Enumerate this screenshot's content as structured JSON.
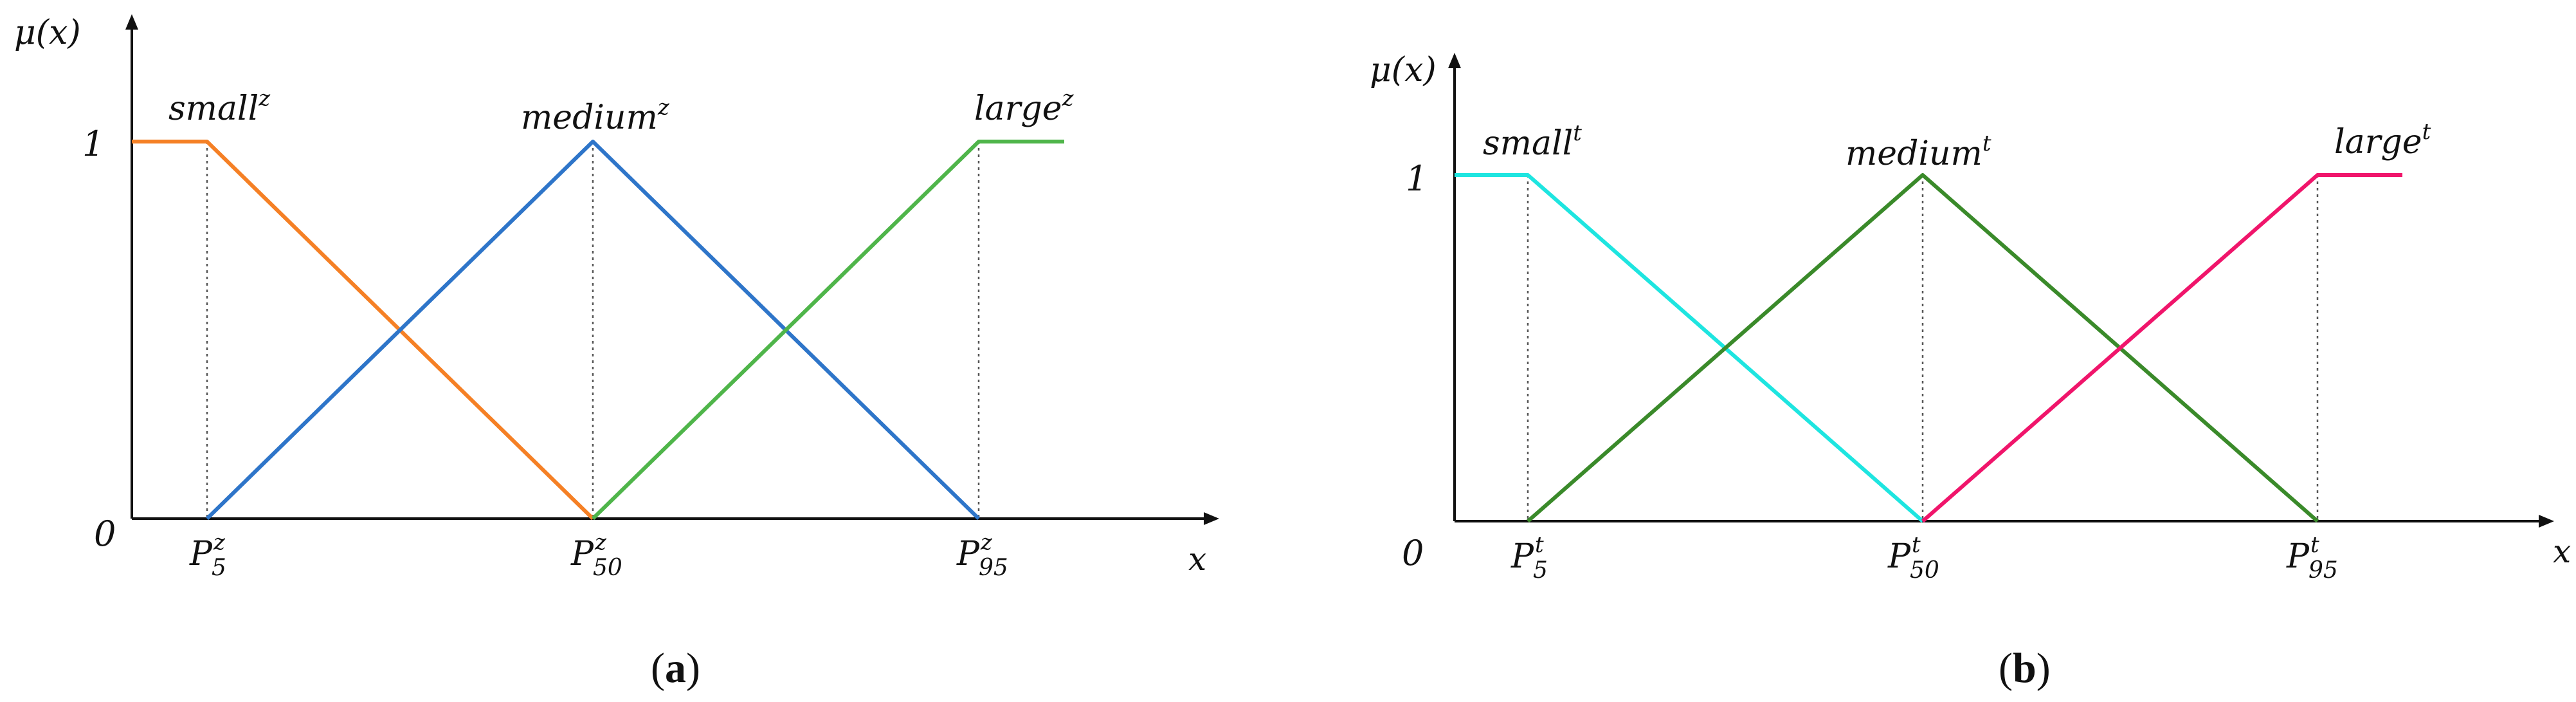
{
  "panels": [
    {
      "id": "a",
      "caption_open": "(",
      "caption_letter": "a",
      "caption_close": ")",
      "y_axis_label": "μ(x)",
      "x_axis_label": "x",
      "y_ticks": [
        "0",
        "1"
      ],
      "x_ticks": [
        {
          "base": "P",
          "sup": "z",
          "sub": "5"
        },
        {
          "base": "P",
          "sup": "z",
          "sub": "50"
        },
        {
          "base": "P",
          "sup": "z",
          "sub": "95"
        }
      ],
      "sets": [
        {
          "base": "small",
          "sup": "z",
          "color": "#F58025",
          "points": [
            [
              0,
              1
            ],
            [
              1,
              1
            ],
            [
              2,
              0
            ]
          ]
        },
        {
          "base": "medium",
          "sup": "z",
          "color": "#2E75C9",
          "points": [
            [
              1,
              0
            ],
            [
              2,
              1
            ],
            [
              3,
              0
            ]
          ]
        },
        {
          "base": "large",
          "sup": "z",
          "color": "#4FB54A",
          "points": [
            [
              2,
              0
            ],
            [
              3,
              1
            ],
            [
              4,
              1
            ]
          ]
        }
      ]
    },
    {
      "id": "b",
      "caption_open": "(",
      "caption_letter": "b",
      "caption_close": ")",
      "y_axis_label": "μ(x)",
      "x_axis_label": "x",
      "y_ticks": [
        "0",
        "1"
      ],
      "x_ticks": [
        {
          "base": "P",
          "sup": "t",
          "sub": "5"
        },
        {
          "base": "P",
          "sup": "t",
          "sub": "50"
        },
        {
          "base": "P",
          "sup": "t",
          "sub": "95"
        }
      ],
      "sets": [
        {
          "base": "small",
          "sup": "t",
          "color": "#1EE5E0",
          "points": [
            [
              0,
              1
            ],
            [
              1,
              1
            ],
            [
              2,
              0
            ]
          ]
        },
        {
          "base": "medium",
          "sup": "t",
          "color": "#3A8A2A",
          "points": [
            [
              1,
              0
            ],
            [
              2,
              1
            ],
            [
              3,
              0
            ]
          ]
        },
        {
          "base": "large",
          "sup": "t",
          "color": "#F0156B",
          "points": [
            [
              2,
              0
            ],
            [
              3,
              1
            ],
            [
              4,
              1
            ]
          ]
        }
      ]
    }
  ]
}
